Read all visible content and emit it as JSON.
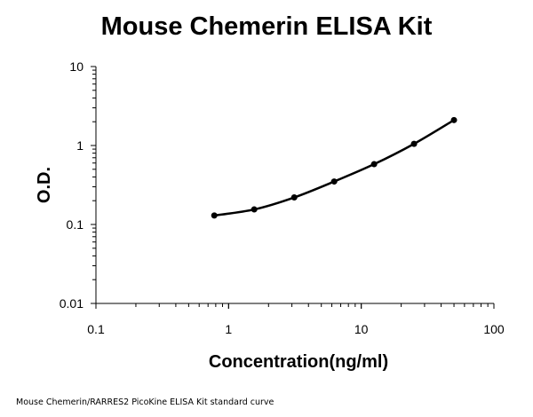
{
  "chart_data": {
    "type": "line",
    "title": "Mouse Chemerin ELISA Kit",
    "xlabel": "Concentration(ng/ml)",
    "ylabel": "O.D.",
    "x_scale": "log",
    "y_scale": "log",
    "xlim": [
      0.1,
      100
    ],
    "ylim": [
      0.01,
      10
    ],
    "x_tick_labels": [
      "0.1",
      "1",
      "10",
      "100"
    ],
    "y_tick_labels": [
      "0.01",
      "0.1",
      "1",
      "10"
    ],
    "grid": false,
    "legend": "none",
    "series": [
      {
        "x": [
          0.78,
          1.56,
          3.125,
          6.25,
          12.5,
          25,
          50
        ],
        "y": [
          0.13,
          0.155,
          0.22,
          0.35,
          0.58,
          1.05,
          2.1
        ]
      }
    ],
    "colors": {
      "line": "#000000",
      "marker": "#000000",
      "axis": "#000000"
    }
  },
  "caption": "Mouse Chemerin/RARRES2 PicoKine ELISA Kit standard curve"
}
